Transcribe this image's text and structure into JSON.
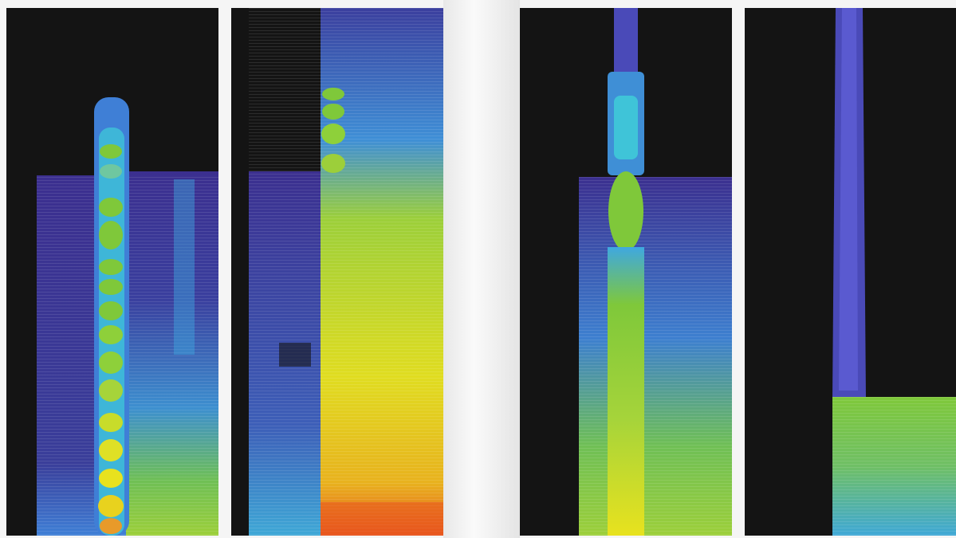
{
  "figure": {
    "panel_count": 4,
    "panels": [
      {
        "id": "panel-1",
        "content": "spectrogram"
      },
      {
        "id": "panel-2",
        "content": "spectrogram"
      },
      {
        "id": "panel-3",
        "content": "spectrogram"
      },
      {
        "id": "panel-4",
        "content": "spectrogram"
      }
    ],
    "colormap": {
      "background": "#141414",
      "low": "#3b2f8f",
      "mid_low": "#3f7fd6",
      "mid": "#3fc4d8",
      "mid_high": "#7fc83a",
      "high": "#e8e21e",
      "peak": "#e8561e"
    }
  }
}
